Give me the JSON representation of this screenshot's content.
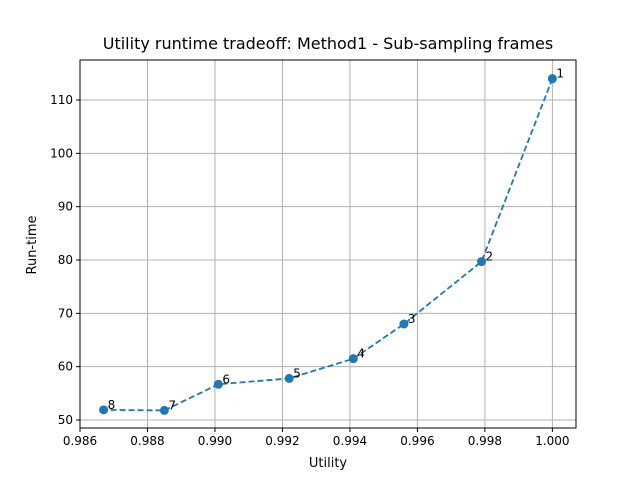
{
  "chart_data": {
    "type": "line",
    "title": "Utility runtime tradeoff: Method1 - Sub-sampling frames",
    "xlabel": "Utility",
    "ylabel": "Run-time",
    "xlim": [
      0.986,
      1.0007
    ],
    "ylim": [
      48.5,
      117.5
    ],
    "xticks": [
      0.986,
      0.988,
      0.99,
      0.992,
      0.994,
      0.996,
      0.998,
      1.0
    ],
    "xtick_labels": [
      "0.986",
      "0.988",
      "0.990",
      "0.992",
      "0.994",
      "0.996",
      "0.998",
      "1.000"
    ],
    "yticks": [
      50,
      60,
      70,
      80,
      90,
      100,
      110
    ],
    "ytick_labels": [
      "50",
      "60",
      "70",
      "80",
      "90",
      "100",
      "110"
    ],
    "grid": true,
    "series": [
      {
        "color": "#1f77b4",
        "line_style": "dashed",
        "marker": "circle",
        "points": [
          {
            "x": 1.0,
            "y": 114.0,
            "label": "1"
          },
          {
            "x": 0.9979,
            "y": 79.7,
            "label": "2"
          },
          {
            "x": 0.9956,
            "y": 68.0,
            "label": "3"
          },
          {
            "x": 0.9941,
            "y": 61.5,
            "label": "4"
          },
          {
            "x": 0.9922,
            "y": 57.8,
            "label": "5"
          },
          {
            "x": 0.9901,
            "y": 56.7,
            "label": "6"
          },
          {
            "x": 0.9885,
            "y": 51.8,
            "label": "7"
          },
          {
            "x": 0.9867,
            "y": 51.9,
            "label": "8"
          }
        ]
      }
    ]
  }
}
